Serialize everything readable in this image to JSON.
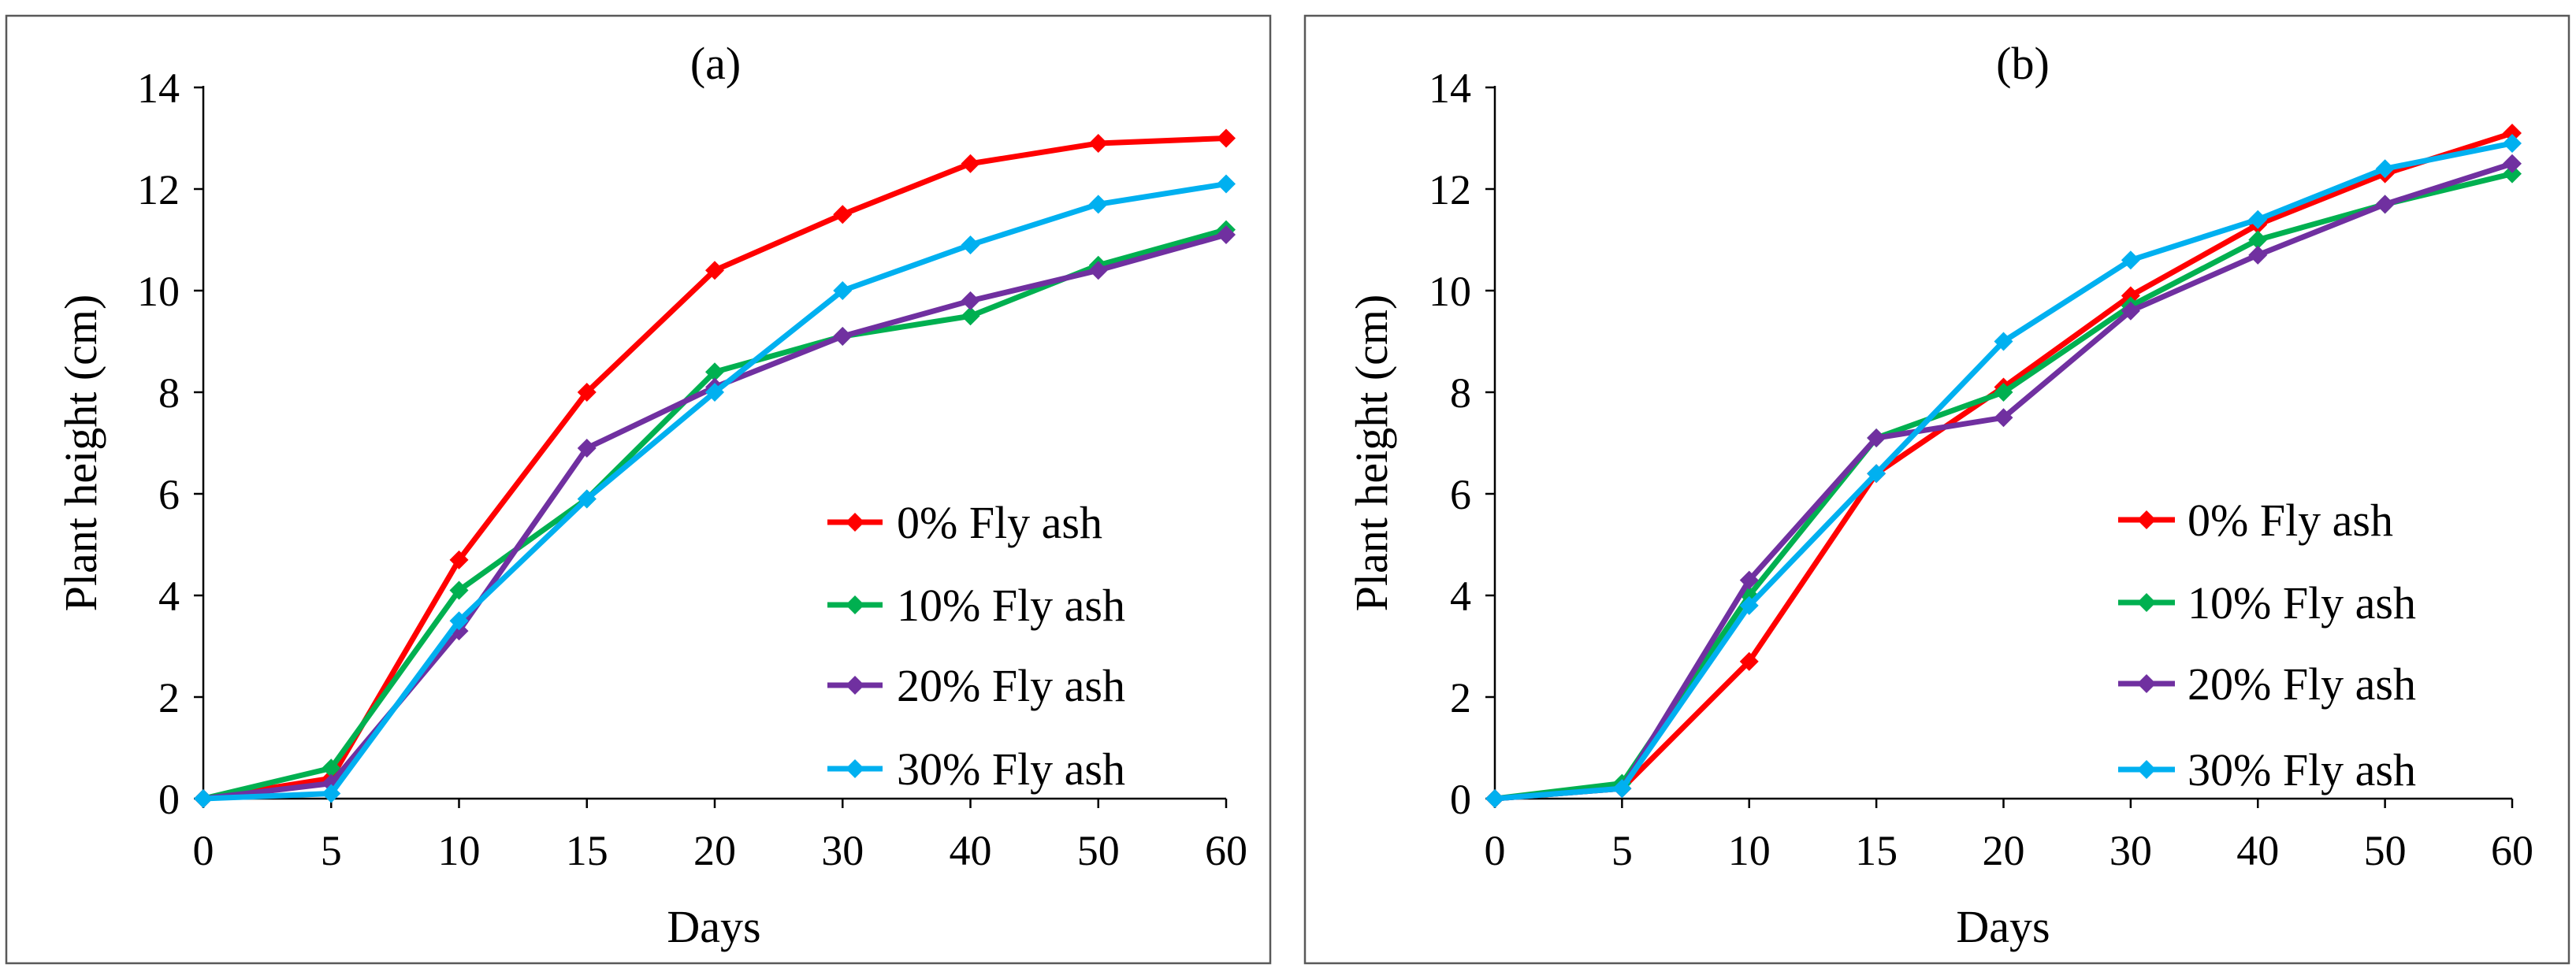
{
  "chart_data": [
    {
      "type": "line",
      "title": "(a)",
      "xlabel": "Days",
      "ylabel": "Plant height (cm)",
      "categories": [
        "0",
        "5",
        "10",
        "15",
        "20",
        "30",
        "40",
        "50",
        "60"
      ],
      "ylim": [
        0,
        14
      ],
      "yticks": [
        "0",
        "2",
        "4",
        "6",
        "8",
        "10",
        "12",
        "14"
      ],
      "grid": false,
      "legend_position": "bottom-right",
      "series": [
        {
          "name": "0% Fly ash",
          "color": "#ff0000",
          "marker": "diamond",
          "values": [
            0.0,
            0.4,
            4.7,
            8.0,
            10.4,
            11.5,
            12.5,
            12.9,
            13.0
          ]
        },
        {
          "name": "10% Fly ash",
          "color": "#00b050",
          "marker": "diamond",
          "values": [
            0.0,
            0.6,
            4.1,
            5.9,
            8.4,
            9.1,
            9.5,
            10.5,
            11.2
          ]
        },
        {
          "name": "20% Fly ash",
          "color": "#7030a0",
          "marker": "diamond",
          "values": [
            0.0,
            0.3,
            3.3,
            6.9,
            8.1,
            9.1,
            9.8,
            10.4,
            11.1
          ]
        },
        {
          "name": "30% Fly ash",
          "color": "#00b0f0",
          "marker": "diamond",
          "values": [
            0.0,
            0.1,
            3.5,
            5.9,
            8.0,
            10.0,
            10.9,
            11.7,
            12.1
          ]
        }
      ]
    },
    {
      "type": "line",
      "title": "(b)",
      "xlabel": "Days",
      "ylabel": "Plant height (cm)",
      "categories": [
        "0",
        "5",
        "10",
        "15",
        "20",
        "30",
        "40",
        "50",
        "60"
      ],
      "ylim": [
        0,
        14
      ],
      "yticks": [
        "0",
        "2",
        "4",
        "6",
        "8",
        "10",
        "12",
        "14"
      ],
      "grid": false,
      "legend_position": "bottom-right",
      "series": [
        {
          "name": "0% Fly ash",
          "color": "#ff0000",
          "marker": "diamond",
          "values": [
            0.0,
            0.2,
            2.7,
            6.4,
            8.1,
            9.9,
            11.3,
            12.3,
            13.1
          ]
        },
        {
          "name": "10% Fly ash",
          "color": "#00b050",
          "marker": "diamond",
          "values": [
            0.0,
            0.3,
            4.0,
            7.1,
            8.0,
            9.7,
            11.0,
            11.7,
            12.3
          ]
        },
        {
          "name": "20% Fly ash",
          "color": "#7030a0",
          "marker": "diamond",
          "values": [
            0.0,
            0.2,
            4.3,
            7.1,
            7.5,
            9.6,
            10.7,
            11.7,
            12.5
          ]
        },
        {
          "name": "30% Fly ash",
          "color": "#00b0f0",
          "marker": "diamond",
          "values": [
            0.0,
            0.2,
            3.8,
            6.4,
            9.0,
            10.6,
            11.4,
            12.4,
            12.9
          ]
        }
      ]
    }
  ]
}
